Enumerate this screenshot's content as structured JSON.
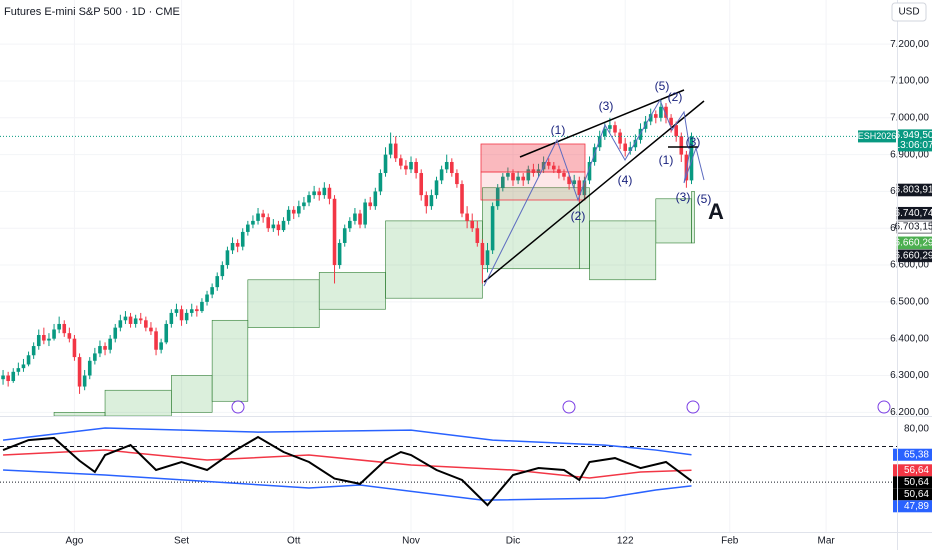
{
  "chart_data": {
    "type": "candlestick",
    "title": "Futures E-mini S&P 500 · 1D · CME",
    "currency": "USD",
    "symbol": "ESH2026",
    "countdown": "13:06:07",
    "last_price_label": "6.949,50",
    "up_color": "#089981",
    "down_color": "#f23645",
    "grid": true,
    "xlim": [
      -0.6,
      175.3
    ],
    "ylim": [
      6190,
      7320
    ],
    "xticks": [
      {
        "value": 14,
        "label": "Ago"
      },
      {
        "value": 35,
        "label": "Set"
      },
      {
        "value": 57,
        "label": "Ott"
      },
      {
        "value": 80,
        "label": "Nov"
      },
      {
        "value": 100,
        "label": "Dic"
      },
      122,
      {
        "value": 142.5,
        "label": "Feb"
      },
      {
        "value": 161.4,
        "label": "Mar"
      }
    ],
    "yticks": [
      {
        "value": 6200,
        "label": "6.200,00"
      },
      {
        "value": 6300,
        "label": "6.300,00"
      },
      {
        "value": 6400,
        "label": "6.400,00"
      },
      {
        "value": 6500,
        "label": "6.500,00"
      },
      {
        "value": 6600,
        "label": "6.600,00"
      },
      {
        "value": 6700,
        "label": "6.700,00"
      },
      {
        "value": 6800,
        "label": "6.800,00"
      },
      {
        "value": 6900,
        "label": "6.900,00"
      },
      {
        "value": 7000,
        "label": "7.000,00"
      },
      {
        "value": 7100,
        "label": "7.100,00"
      },
      {
        "value": 7200,
        "label": "7.200,00"
      }
    ],
    "ohlc": [
      [
        6290,
        6315,
        6275,
        6300
      ],
      [
        6300,
        6310,
        6270,
        6285
      ],
      [
        6285,
        6320,
        6280,
        6310
      ],
      [
        6310,
        6335,
        6300,
        6320
      ],
      [
        6320,
        6345,
        6310,
        6330
      ],
      [
        6330,
        6365,
        6325,
        6355
      ],
      [
        6355,
        6390,
        6345,
        6380
      ],
      [
        6380,
        6425,
        6370,
        6410
      ],
      [
        6410,
        6430,
        6385,
        6395
      ],
      [
        6395,
        6415,
        6380,
        6400
      ],
      [
        6400,
        6440,
        6395,
        6425
      ],
      [
        6425,
        6460,
        6415,
        6440
      ],
      [
        6440,
        6450,
        6405,
        6415
      ],
      [
        6415,
        6430,
        6390,
        6400
      ],
      [
        6400,
        6410,
        6340,
        6350
      ],
      [
        6350,
        6360,
        6250,
        6270
      ],
      [
        6270,
        6315,
        6260,
        6300
      ],
      [
        6300,
        6350,
        6290,
        6340
      ],
      [
        6340,
        6375,
        6330,
        6360
      ],
      [
        6360,
        6395,
        6350,
        6380
      ],
      [
        6380,
        6390,
        6355,
        6370
      ],
      [
        6370,
        6410,
        6360,
        6400
      ],
      [
        6400,
        6440,
        6390,
        6430
      ],
      [
        6430,
        6465,
        6420,
        6450
      ],
      [
        6450,
        6475,
        6440,
        6460
      ],
      [
        6460,
        6470,
        6430,
        6440
      ],
      [
        6440,
        6465,
        6430,
        6455
      ],
      [
        6455,
        6470,
        6440,
        6450
      ],
      [
        6450,
        6460,
        6420,
        6430
      ],
      [
        6430,
        6445,
        6410,
        6420
      ],
      [
        6420,
        6430,
        6355,
        6370
      ],
      [
        6370,
        6400,
        6360,
        6390
      ],
      [
        6390,
        6450,
        6385,
        6440
      ],
      [
        6440,
        6480,
        6430,
        6470
      ],
      [
        6470,
        6495,
        6460,
        6480
      ],
      [
        6480,
        6490,
        6435,
        6450
      ],
      [
        6450,
        6480,
        6440,
        6470
      ],
      [
        6470,
        6495,
        6460,
        6480
      ],
      [
        6480,
        6490,
        6460,
        6475
      ],
      [
        6475,
        6510,
        6470,
        6500
      ],
      [
        6500,
        6530,
        6490,
        6520
      ],
      [
        6520,
        6550,
        6510,
        6540
      ],
      [
        6540,
        6580,
        6530,
        6570
      ],
      [
        6570,
        6610,
        6560,
        6600
      ],
      [
        6600,
        6650,
        6590,
        6640
      ],
      [
        6640,
        6675,
        6630,
        6660
      ],
      [
        6660,
        6670,
        6635,
        6650
      ],
      [
        6650,
        6700,
        6640,
        6690
      ],
      [
        6690,
        6720,
        6680,
        6710
      ],
      [
        6710,
        6735,
        6700,
        6720
      ],
      [
        6720,
        6755,
        6710,
        6740
      ],
      [
        6740,
        6750,
        6715,
        6730
      ],
      [
        6730,
        6740,
        6690,
        6700
      ],
      [
        6700,
        6725,
        6690,
        6710
      ],
      [
        6710,
        6720,
        6680,
        6695
      ],
      [
        6695,
        6730,
        6690,
        6720
      ],
      [
        6720,
        6760,
        6710,
        6750
      ],
      [
        6750,
        6760,
        6725,
        6740
      ],
      [
        6740,
        6775,
        6730,
        6760
      ],
      [
        6760,
        6785,
        6750,
        6770
      ],
      [
        6770,
        6800,
        6760,
        6790
      ],
      [
        6790,
        6815,
        6780,
        6800
      ],
      [
        6800,
        6810,
        6775,
        6790
      ],
      [
        6790,
        6825,
        6780,
        6810
      ],
      [
        6810,
        6820,
        6765,
        6780
      ],
      [
        6780,
        6790,
        6550,
        6600
      ],
      [
        6600,
        6670,
        6590,
        6660
      ],
      [
        6660,
        6710,
        6650,
        6700
      ],
      [
        6700,
        6730,
        6690,
        6720
      ],
      [
        6720,
        6755,
        6710,
        6740
      ],
      [
        6740,
        6750,
        6700,
        6710
      ],
      [
        6710,
        6780,
        6700,
        6770
      ],
      [
        6770,
        6785,
        6750,
        6760
      ],
      [
        6760,
        6810,
        6750,
        6800
      ],
      [
        6800,
        6860,
        6790,
        6850
      ],
      [
        6850,
        6920,
        6840,
        6900
      ],
      [
        6900,
        6960,
        6890,
        6930
      ],
      [
        6930,
        6950,
        6880,
        6890
      ],
      [
        6890,
        6900,
        6860,
        6870
      ],
      [
        6870,
        6885,
        6845,
        6860
      ],
      [
        6860,
        6895,
        6850,
        6880
      ],
      [
        6880,
        6890,
        6835,
        6850
      ],
      [
        6850,
        6860,
        6775,
        6790
      ],
      [
        6790,
        6800,
        6740,
        6760
      ],
      [
        6760,
        6805,
        6750,
        6790
      ],
      [
        6790,
        6840,
        6780,
        6830
      ],
      [
        6830,
        6870,
        6820,
        6860
      ],
      [
        6860,
        6900,
        6850,
        6880
      ],
      [
        6880,
        6890,
        6840,
        6850
      ],
      [
        6850,
        6860,
        6810,
        6820
      ],
      [
        6820,
        6830,
        6730,
        6740
      ],
      [
        6740,
        6760,
        6700,
        6720
      ],
      [
        6720,
        6740,
        6690,
        6700
      ],
      [
        6700,
        6720,
        6650,
        6660
      ],
      [
        6660,
        6670,
        6550,
        6600
      ],
      [
        6600,
        6660,
        6580,
        6640
      ],
      [
        6640,
        6770,
        6630,
        6760
      ],
      [
        6760,
        6820,
        6750,
        6810
      ],
      [
        6810,
        6850,
        6800,
        6840
      ],
      [
        6840,
        6865,
        6830,
        6850
      ],
      [
        6850,
        6860,
        6815,
        6830
      ],
      [
        6830,
        6855,
        6820,
        6840
      ],
      [
        6840,
        6850,
        6815,
        6830
      ],
      [
        6830,
        6870,
        6820,
        6860
      ],
      [
        6860,
        6875,
        6840,
        6850
      ],
      [
        6850,
        6875,
        6840,
        6860
      ],
      [
        6860,
        6895,
        6850,
        6880
      ],
      [
        6880,
        6890,
        6860,
        6870
      ],
      [
        6870,
        6880,
        6850,
        6860
      ],
      [
        6860,
        6870,
        6835,
        6850
      ],
      [
        6850,
        6860,
        6830,
        6840
      ],
      [
        6840,
        6850,
        6805,
        6820
      ],
      [
        6820,
        6845,
        6810,
        6830
      ],
      [
        6830,
        6840,
        6770,
        6790
      ],
      [
        6790,
        6840,
        6780,
        6830
      ],
      [
        6830,
        6895,
        6820,
        6880
      ],
      [
        6880,
        6930,
        6870,
        6920
      ],
      [
        6920,
        6965,
        6910,
        6950
      ],
      [
        6950,
        6985,
        6940,
        6970
      ],
      [
        6970,
        7000,
        6960,
        6980
      ],
      [
        6980,
        6990,
        6950,
        6960
      ],
      [
        6960,
        6970,
        6915,
        6930
      ],
      [
        6930,
        6945,
        6895,
        6910
      ],
      [
        6910,
        6935,
        6900,
        6920
      ],
      [
        6920,
        6955,
        6910,
        6940
      ],
      [
        6940,
        6985,
        6930,
        6970
      ],
      [
        6970,
        7005,
        6960,
        6990
      ],
      [
        6990,
        7025,
        6980,
        7010
      ],
      [
        7010,
        7020,
        6985,
        7000
      ],
      [
        7000,
        7050,
        6990,
        7030
      ],
      [
        7030,
        7040,
        6985,
        7000
      ],
      [
        7000,
        7010,
        6960,
        6980
      ],
      [
        6980,
        6990,
        6935,
        6950
      ],
      [
        6950,
        6960,
        6880,
        6900
      ],
      [
        6900,
        6910,
        6810,
        6830
      ],
      [
        6830,
        6960,
        6820,
        6949.5
      ]
    ],
    "band": {
      "color": "#4caf50",
      "x": [
        10,
        20,
        33,
        41,
        48,
        62,
        75,
        94,
        113,
        115,
        128,
        135
      ],
      "upper": [
        6200,
        6260,
        6300,
        6450,
        6560,
        6580,
        6720,
        6810,
        6810,
        6720,
        6780,
        6800
      ],
      "lower": [
        6190,
        6190,
        6200,
        6230,
        6430,
        6480,
        6510,
        6590,
        6590,
        6560,
        6660,
        6660
      ]
    },
    "price_labels": [
      {
        "value": 6803.91,
        "label": "6.803,91",
        "color": "#131722"
      },
      {
        "value": 6740.74,
        "label": "6.740,74",
        "color": "#131722"
      },
      {
        "value": 6703.15,
        "label": "6.703,15",
        "color": "#ffffff"
      },
      {
        "value": 6660.29,
        "label": "6.660,29",
        "color": "#4caf50"
      },
      {
        "value": 6660.29,
        "label": "6.660,29",
        "color": "#131722"
      }
    ],
    "annotations": [
      "(1)",
      "(2)",
      "(3)",
      "(4)",
      "(5)",
      "(2)",
      "(3)",
      "(1)",
      "(3)",
      "(5)",
      "A"
    ],
    "oscillator": {
      "ylim": [
        22,
        86
      ],
      "yticks": [
        {
          "value": 80,
          "label": "80,00"
        }
      ],
      "levels": [
        70,
        50
      ],
      "series": [
        {
          "color": "#2962ff",
          "x": [
            0,
            20,
            50,
            80,
            96,
            118,
            128,
            135
          ],
          "values": [
            73.6,
            80.4,
            78.1,
            79.2,
            73.6,
            70.8,
            68,
            65.38
          ]
        },
        {
          "color": "#2962ff",
          "x": [
            0,
            20,
            60,
            70,
            94,
            118,
            128,
            135
          ],
          "values": [
            56.8,
            54,
            46.7,
            48.4,
            39.9,
            41,
            45.6,
            47.89
          ]
        },
        {
          "color": "#f23645",
          "x": [
            0,
            20,
            40,
            60,
            80,
            100,
            115,
            125,
            135
          ],
          "values": [
            65.2,
            68,
            62.4,
            65.2,
            59.6,
            56.8,
            52.3,
            55.7,
            56.64
          ]
        },
        {
          "color": "#000000",
          "x": [
            0,
            5,
            10,
            15,
            18,
            20,
            25,
            30,
            35,
            40,
            45,
            50,
            55,
            60,
            65,
            70,
            75,
            78,
            80,
            85,
            90,
            95,
            100,
            105,
            110,
            113,
            115,
            120,
            125,
            130,
            135
          ],
          "values": [
            68,
            73.6,
            74.8,
            62,
            55.7,
            65.2,
            70.8,
            56.8,
            61.3,
            56.8,
            66.9,
            75.3,
            66.9,
            61.3,
            52,
            49,
            62.4,
            66.9,
            65.2,
            56.8,
            51.2,
            37.1,
            54,
            57.9,
            56.8,
            51.2,
            61.3,
            63.5,
            57.9,
            61.3,
            50.64
          ]
        }
      ],
      "value_labels": [
        {
          "value": 65.38,
          "label": "65,38",
          "color": "#2962ff"
        },
        {
          "value": 56.64,
          "label": "56,64",
          "color": "#f23645"
        },
        {
          "value": 50.64,
          "label": "50,64",
          "color": "#000000"
        },
        {
          "value": 50.64,
          "label": "50,64",
          "color": "#000000"
        },
        {
          "value": 47.89,
          "label": "47,89",
          "color": "#2962ff"
        }
      ]
    }
  }
}
